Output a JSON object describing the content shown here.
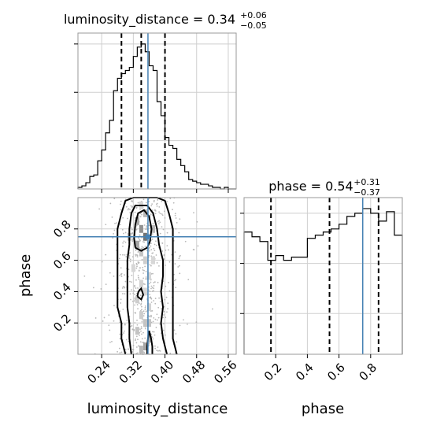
{
  "chart_data": {
    "type": "corner",
    "parameters": [
      "luminosity_distance",
      "phase"
    ],
    "truth": {
      "luminosity_distance": 0.357,
      "phase": 0.75
    },
    "truth_color": "#4682b4",
    "grid": true,
    "panels": [
      {
        "panel": "hist-luminosity-distance",
        "type": "step-histogram",
        "title": {
          "prefix": "luminosity_distance = 0.34",
          "sup": "+0.06",
          "sub": "−0.05"
        },
        "xlim": [
          0.18,
          0.58
        ],
        "ylim": [
          0,
          1
        ],
        "bin_edges": [
          0.18,
          0.19,
          0.2,
          0.21,
          0.22,
          0.23,
          0.24,
          0.25,
          0.26,
          0.27,
          0.28,
          0.29,
          0.3,
          0.31,
          0.32,
          0.33,
          0.34,
          0.35,
          0.36,
          0.37,
          0.38,
          0.39,
          0.4,
          0.41,
          0.42,
          0.43,
          0.44,
          0.45,
          0.46,
          0.47,
          0.48,
          0.49,
          0.5,
          0.51,
          0.52,
          0.53,
          0.54,
          0.55,
          0.56,
          0.57,
          0.58
        ],
        "values": [
          0.01,
          0.02,
          0.04,
          0.08,
          0.09,
          0.18,
          0.25,
          0.36,
          0.44,
          0.63,
          0.71,
          0.74,
          0.76,
          0.78,
          0.85,
          0.91,
          0.93,
          0.88,
          0.79,
          0.76,
          0.56,
          0.47,
          0.33,
          0.28,
          0.26,
          0.19,
          0.15,
          0.11,
          0.06,
          0.05,
          0.04,
          0.03,
          0.03,
          0.02,
          0.01,
          0.01,
          0.0,
          0.01,
          0.0,
          0.0
        ],
        "quantiles": [
          0.29,
          0.34,
          0.4
        ],
        "yticks": [
          0.31,
          0.62,
          0.93
        ],
        "x_tick_labels_shown": false
      },
      {
        "panel": "hist-phase",
        "type": "step-histogram",
        "title": {
          "prefix": "phase = 0.54",
          "sup": "+0.31",
          "sub": "−0.37"
        },
        "xlim": [
          0.0,
          1.0
        ],
        "ylim": [
          0,
          1
        ],
        "bin_edges": [
          0.0,
          0.05,
          0.1,
          0.15,
          0.2,
          0.25,
          0.3,
          0.35,
          0.4,
          0.45,
          0.5,
          0.55,
          0.6,
          0.65,
          0.7,
          0.75,
          0.8,
          0.85,
          0.9,
          0.95,
          1.0
        ],
        "values": [
          0.78,
          0.75,
          0.72,
          0.6,
          0.63,
          0.6,
          0.62,
          0.62,
          0.74,
          0.76,
          0.78,
          0.8,
          0.83,
          0.88,
          0.9,
          0.93,
          0.9,
          0.85,
          0.91,
          0.76
        ],
        "quantiles": [
          0.17,
          0.54,
          0.85
        ],
        "yticks": [
          0.26,
          0.58,
          0.9
        ],
        "xticks": [
          0.2,
          0.4,
          0.6,
          0.8
        ],
        "xlabel": "phase"
      },
      {
        "panel": "contour-2d",
        "type": "contour",
        "xlim": [
          0.18,
          0.58
        ],
        "ylim": [
          0.0,
          1.0
        ],
        "xticks": [
          0.24,
          0.32,
          0.4,
          0.48,
          0.56
        ],
        "x_tick_labels": [
          "0.24",
          "0.32",
          "0.40",
          "0.48",
          "0.56"
        ],
        "yticks": [
          0.2,
          0.4,
          0.6,
          0.8
        ],
        "y_tick_labels": [
          "0.2",
          "0.4",
          "0.6",
          "0.8"
        ],
        "xlabel": "luminosity_distance",
        "ylabel": "phase",
        "contours": [
          [
            [
              0.3,
              0.0
            ],
            [
              0.29,
              0.1
            ],
            [
              0.29,
              0.2
            ],
            [
              0.28,
              0.3
            ],
            [
              0.28,
              0.4
            ],
            [
              0.28,
              0.5
            ],
            [
              0.28,
              0.6
            ],
            [
              0.28,
              0.7
            ],
            [
              0.28,
              0.8
            ],
            [
              0.29,
              0.9
            ],
            [
              0.3,
              0.98
            ],
            [
              0.32,
              1.0
            ],
            [
              0.38,
              1.0
            ],
            [
              0.4,
              0.98
            ],
            [
              0.41,
              0.9
            ],
            [
              0.42,
              0.8
            ],
            [
              0.42,
              0.7
            ],
            [
              0.42,
              0.6
            ],
            [
              0.42,
              0.5
            ],
            [
              0.42,
              0.4
            ],
            [
              0.42,
              0.3
            ],
            [
              0.42,
              0.2
            ],
            [
              0.42,
              0.1
            ],
            [
              0.43,
              0.0
            ]
          ],
          [
            [
              0.315,
              0.0
            ],
            [
              0.31,
              0.1
            ],
            [
              0.31,
              0.2
            ],
            [
              0.305,
              0.3
            ],
            [
              0.305,
              0.4
            ],
            [
              0.305,
              0.5
            ],
            [
              0.305,
              0.6
            ],
            [
              0.31,
              0.7
            ],
            [
              0.31,
              0.8
            ],
            [
              0.315,
              0.9
            ],
            [
              0.325,
              0.95
            ],
            [
              0.355,
              0.95
            ],
            [
              0.37,
              0.9
            ],
            [
              0.38,
              0.8
            ],
            [
              0.385,
              0.7
            ],
            [
              0.395,
              0.6
            ],
            [
              0.395,
              0.5
            ],
            [
              0.39,
              0.4
            ],
            [
              0.395,
              0.3
            ],
            [
              0.39,
              0.2
            ],
            [
              0.395,
              0.1
            ],
            [
              0.405,
              0.0
            ]
          ],
          [
            [
              0.325,
              0.68
            ],
            [
              0.322,
              0.74
            ],
            [
              0.325,
              0.83
            ],
            [
              0.332,
              0.9
            ],
            [
              0.347,
              0.92
            ],
            [
              0.36,
              0.88
            ],
            [
              0.366,
              0.8
            ],
            [
              0.362,
              0.72
            ],
            [
              0.355,
              0.68
            ],
            [
              0.34,
              0.66
            ],
            [
              0.325,
              0.68
            ]
          ],
          [
            [
              0.33,
              0.37
            ],
            [
              0.333,
              0.4
            ],
            [
              0.34,
              0.42
            ],
            [
              0.345,
              0.38
            ],
            [
              0.34,
              0.35
            ],
            [
              0.33,
              0.37
            ]
          ],
          [
            [
              0.355,
              0.0
            ],
            [
              0.355,
              0.05
            ],
            [
              0.357,
              0.1
            ],
            [
              0.36,
              0.15
            ],
            [
              0.365,
              0.1
            ],
            [
              0.368,
              0.05
            ],
            [
              0.368,
              0.0
            ]
          ]
        ],
        "density_cells": [
          [
            0.34,
            0.95,
            0.2
          ],
          [
            0.35,
            0.9,
            0.35
          ],
          [
            0.33,
            0.85,
            0.45
          ],
          [
            0.34,
            0.8,
            0.55
          ],
          [
            0.35,
            0.75,
            0.7
          ],
          [
            0.33,
            0.7,
            0.45
          ],
          [
            0.34,
            0.65,
            0.3
          ],
          [
            0.35,
            0.6,
            0.25
          ],
          [
            0.32,
            0.55,
            0.2
          ],
          [
            0.36,
            0.5,
            0.2
          ],
          [
            0.34,
            0.45,
            0.22
          ],
          [
            0.35,
            0.4,
            0.2
          ],
          [
            0.33,
            0.35,
            0.25
          ],
          [
            0.36,
            0.3,
            0.22
          ],
          [
            0.34,
            0.25,
            0.25
          ],
          [
            0.35,
            0.2,
            0.3
          ],
          [
            0.33,
            0.15,
            0.3
          ],
          [
            0.36,
            0.1,
            0.4
          ],
          [
            0.35,
            0.05,
            0.45
          ],
          [
            0.34,
            0.03,
            0.35
          ],
          [
            0.36,
            0.2,
            0.3
          ],
          [
            0.37,
            0.8,
            0.35
          ],
          [
            0.31,
            0.75,
            0.3
          ],
          [
            0.37,
            0.6,
            0.2
          ]
        ]
      }
    ]
  }
}
